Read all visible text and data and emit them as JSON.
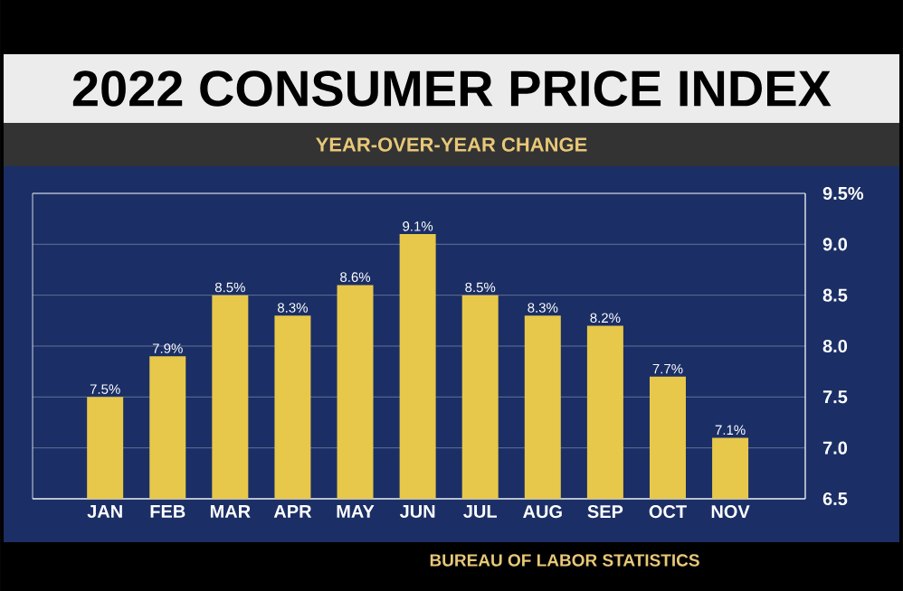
{
  "chart_data": {
    "type": "bar",
    "title": "2022 CONSUMER PRICE INDEX",
    "subtitle": "YEAR-OVER-YEAR CHANGE",
    "categories": [
      "JAN",
      "FEB",
      "MAR",
      "APR",
      "MAY",
      "JUN",
      "JUL",
      "AUG",
      "SEP",
      "OCT",
      "NOV"
    ],
    "values": [
      7.5,
      7.9,
      8.5,
      8.3,
      8.6,
      9.1,
      8.5,
      8.3,
      8.2,
      7.7,
      7.1
    ],
    "value_labels": [
      "7.5%",
      "7.9%",
      "8.5%",
      "8.3%",
      "8.6%",
      "9.1%",
      "8.5%",
      "8.3%",
      "8.2%",
      "7.7%",
      "7.1%"
    ],
    "color": "#e8c84a",
    "ylim": [
      6.5,
      9.5
    ],
    "yticks": [
      6.5,
      {
        "value": 7.0,
        "label": "7.0"
      },
      7.5,
      {
        "value": 8.0,
        "label": "8.0"
      },
      8.5,
      {
        "value": 9.0,
        "label": "9.0"
      },
      {
        "value": 9.5,
        "label": "9.5%"
      }
    ],
    "grid": "y",
    "annotations": [
      "BUREAU OF LABOR STATISTICS"
    ]
  }
}
